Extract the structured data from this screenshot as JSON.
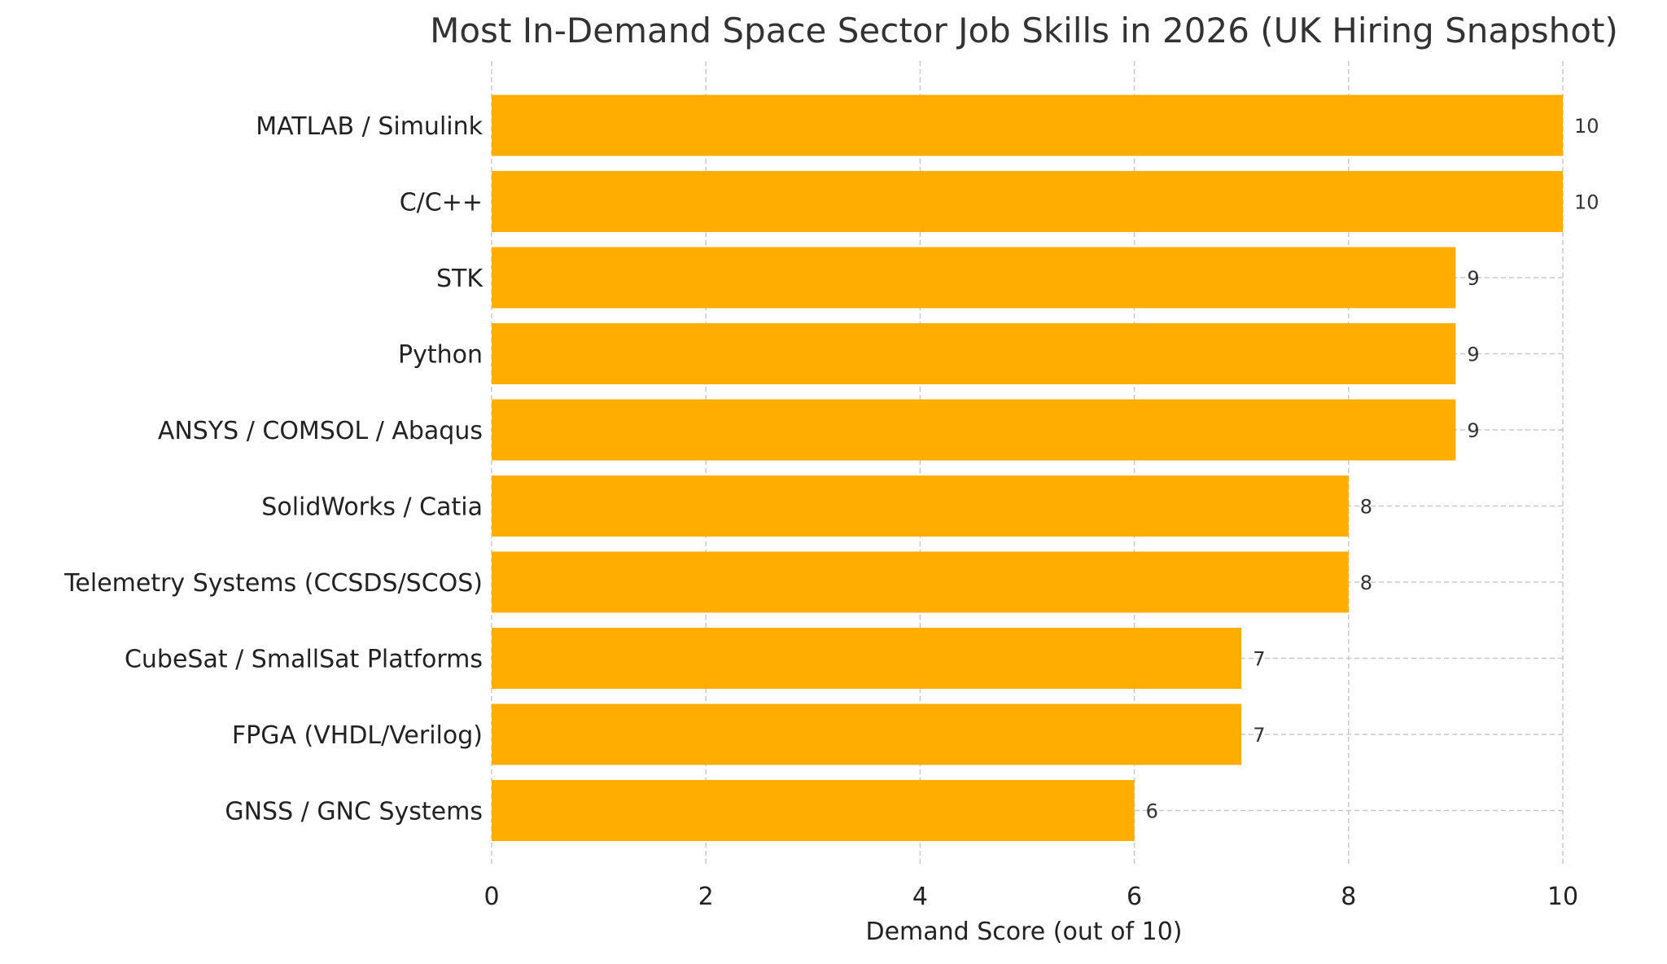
{
  "chart_data": {
    "type": "bar",
    "orientation": "horizontal",
    "title": "Most In-Demand Space Sector Job Skills in 2026 (UK Hiring Snapshot)",
    "xlabel": "Demand Score (out of 10)",
    "ylabel": "",
    "xlim": [
      0,
      10
    ],
    "xticks": [
      0,
      2,
      4,
      6,
      8,
      10
    ],
    "grid": true,
    "bar_color": "#FFAE00",
    "categories": [
      "MATLAB / Simulink",
      "C/C++",
      "STK",
      "Python",
      "ANSYS / COMSOL / Abaqus",
      "SolidWorks / Catia",
      "Telemetry Systems (CCSDS/SCOS)",
      "CubeSat / SmallSat Platforms",
      "FPGA (VHDL/Verilog)",
      "GNSS / GNC Systems"
    ],
    "values": [
      10,
      10,
      9,
      9,
      9,
      8,
      8,
      7,
      7,
      6
    ]
  }
}
